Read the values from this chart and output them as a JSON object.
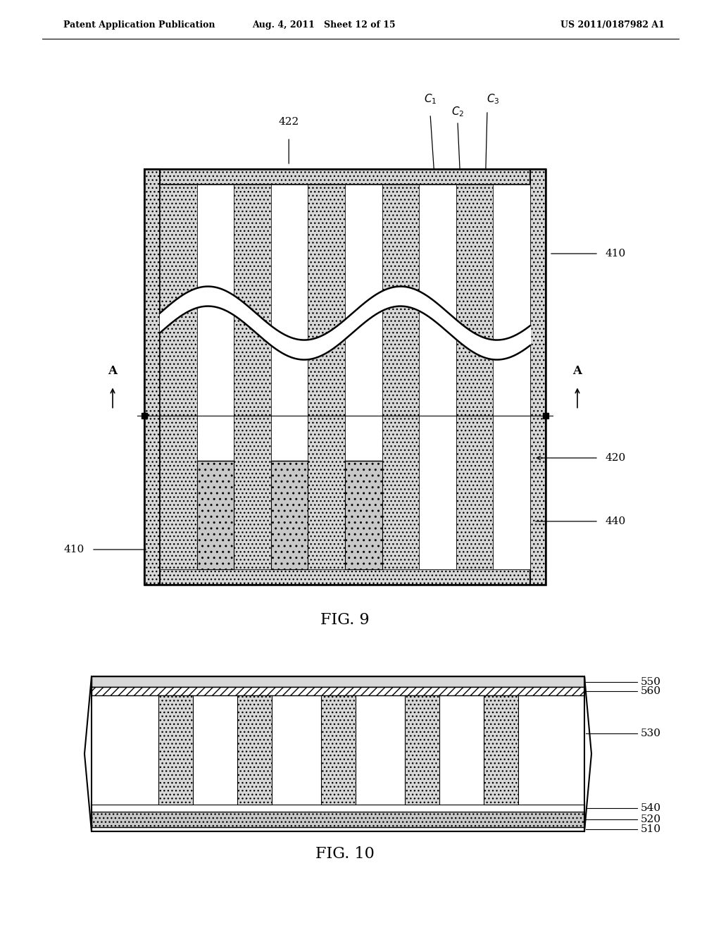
{
  "bg_color": "#ffffff",
  "header_left": "Patent Application Publication",
  "header_mid": "Aug. 4, 2011   Sheet 12 of 15",
  "header_right": "US 2011/0187982 A1",
  "fig9_label": "FIG. 9",
  "fig10_label": "FIG. 10",
  "line_color": "#000000",
  "hatch_color": "#000000",
  "gray_fill": "#d8d8d8",
  "light_gray": "#e8e8e8",
  "dot_fill": "#c8c8c8"
}
